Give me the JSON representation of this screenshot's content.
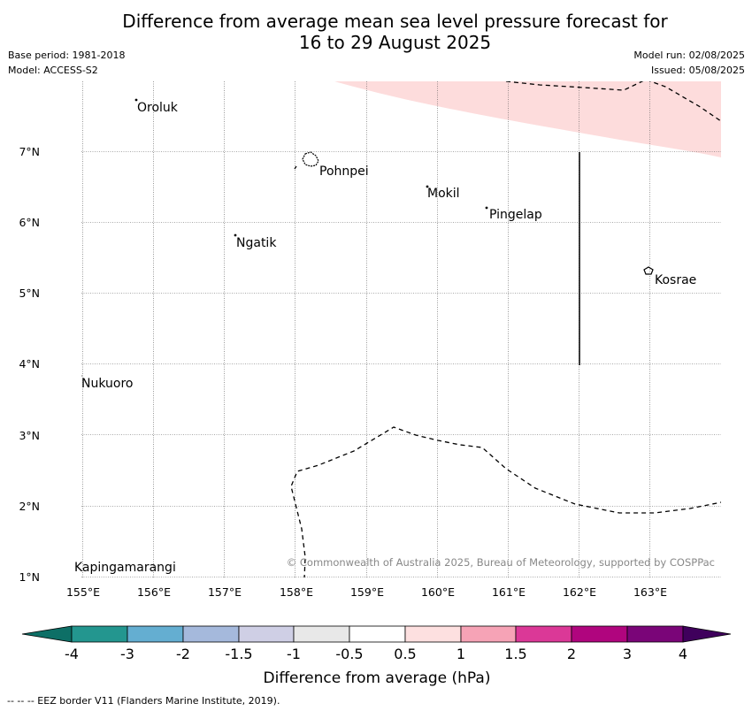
{
  "header": {
    "title_line1": "Difference from average mean sea level pressure forecast for",
    "title_line2": "16 to 29 August 2025",
    "base_period": "Base period: 1981-2018",
    "model": "Model: ACCESS-S2",
    "model_run": "Model run: 02/08/2025",
    "issued": "Issued: 05/08/2025"
  },
  "map": {
    "lon_labels": [
      "155°E",
      "156°E",
      "157°E",
      "158°E",
      "159°E",
      "160°E",
      "161°E",
      "162°E",
      "163°E"
    ],
    "lat_labels": [
      "7°N",
      "6°N",
      "5°N",
      "4°N",
      "3°N",
      "2°N",
      "1°N"
    ],
    "places": [
      "Oroluk",
      "Pohnpei",
      "Mokil",
      "Pingelap",
      "Ngatik",
      "Kosrae",
      "Nukuoro",
      "Kapingamarangi"
    ],
    "copyright": "© Commonwealth of Australia 2025, Bureau of Meteorology, supported by COSPPac",
    "fill_color": "#fddcdc"
  },
  "colorbar": {
    "tick_labels": [
      "-4",
      "-3",
      "-2",
      "-1.5",
      "-1",
      "-0.5",
      "0.5",
      "1",
      "1.5",
      "2",
      "3",
      "4"
    ],
    "colors": [
      "#0d6f66",
      "#23968f",
      "#64aed1",
      "#a5b9dc",
      "#cfcfe5",
      "#e8e8e8",
      "#ffffff",
      "#fde0e0",
      "#f6a3b6",
      "#db3897",
      "#b0057e",
      "#7a0578",
      "#3f005c"
    ],
    "label": "Difference from average (hPa)"
  },
  "footnote": "--  --  -- EEZ border V11 (Flanders Marine Institute, 2019)."
}
